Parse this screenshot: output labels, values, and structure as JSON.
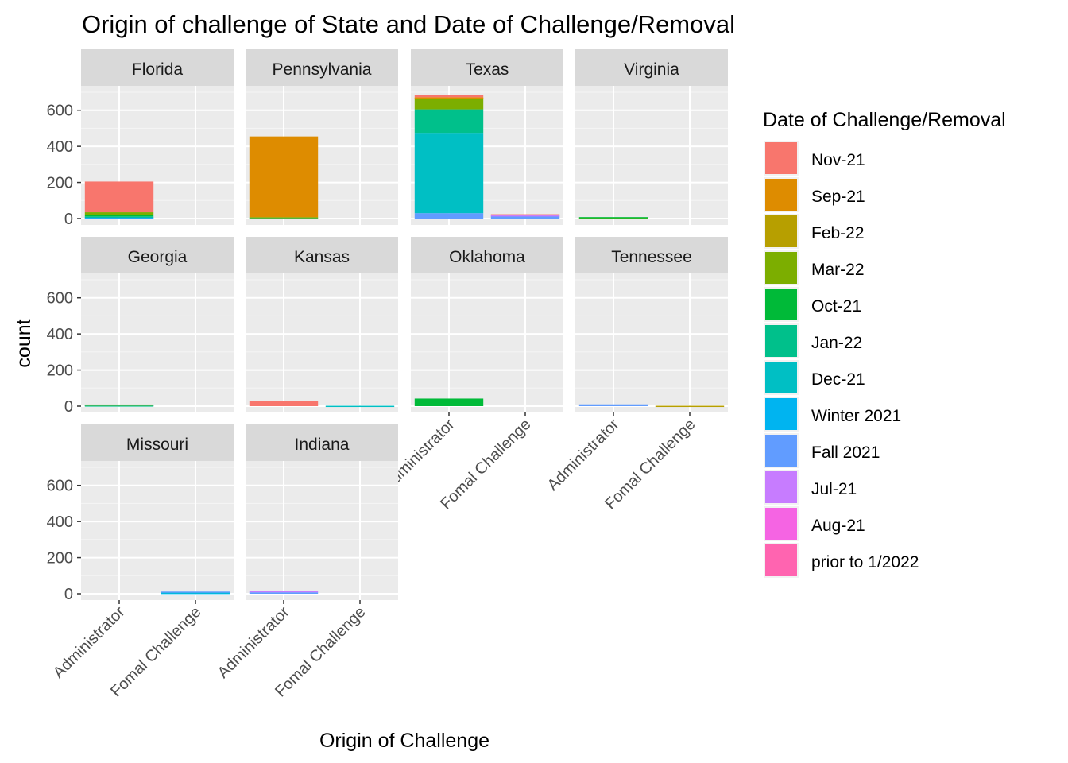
{
  "chart_data": {
    "type": "bar",
    "stacked": true,
    "faceted": true,
    "title": "Origin of challenge of State and Date of Challenge/Removal",
    "xlabel": "Origin of Challenge",
    "ylabel": "count",
    "ylim": [
      0,
      700
    ],
    "yticks": [
      0,
      200,
      400,
      600
    ],
    "categories": [
      "Administrator",
      "Fomal Challenge"
    ],
    "legend": {
      "title": "Date of Challenge/Removal",
      "position": "right",
      "entries": [
        {
          "label": "Nov-21",
          "color": "#F8766D"
        },
        {
          "label": "Sep-21",
          "color": "#DE8C00"
        },
        {
          "label": "Feb-22",
          "color": "#B79F00"
        },
        {
          "label": "Mar-22",
          "color": "#7CAE00"
        },
        {
          "label": "Oct-21",
          "color": "#00BA38"
        },
        {
          "label": "Jan-22",
          "color": "#00C08B"
        },
        {
          "label": "Dec-21",
          "color": "#00BFC4"
        },
        {
          "label": "Winter 2021",
          "color": "#00B4F0"
        },
        {
          "label": "Fall 2021",
          "color": "#619CFF"
        },
        {
          "label": "Jul-21",
          "color": "#C77CFF"
        },
        {
          "label": "Aug-21",
          "color": "#F564E3"
        },
        {
          "label": "prior to 1/2022",
          "color": "#FF64B0"
        }
      ]
    },
    "facets": [
      {
        "name": "Florida",
        "bars": [
          {
            "category": "Administrator",
            "segments": [
              {
                "series": "Fall 2021",
                "value": 5
              },
              {
                "series": "Winter 2021",
                "value": 3
              },
              {
                "series": "Jan-22",
                "value": 4
              },
              {
                "series": "Oct-21",
                "value": 8
              },
              {
                "series": "Mar-22",
                "value": 15
              },
              {
                "series": "Nov-21",
                "value": 170
              }
            ]
          },
          {
            "category": "Fomal Challenge",
            "segments": []
          }
        ]
      },
      {
        "name": "Pennsylvania",
        "bars": [
          {
            "category": "Administrator",
            "segments": [
              {
                "series": "Dec-21",
                "value": 5
              },
              {
                "series": "Mar-22",
                "value": 3
              },
              {
                "series": "Sep-21",
                "value": 447
              }
            ]
          },
          {
            "category": "Fomal Challenge",
            "segments": []
          }
        ]
      },
      {
        "name": "Texas",
        "bars": [
          {
            "category": "Administrator",
            "segments": [
              {
                "series": "Fall 2021",
                "value": 30
              },
              {
                "series": "Dec-21",
                "value": 445
              },
              {
                "series": "Jan-22",
                "value": 130
              },
              {
                "series": "Mar-22",
                "value": 60
              },
              {
                "series": "Feb-22",
                "value": 5
              },
              {
                "series": "Sep-21",
                "value": 2
              },
              {
                "series": "Nov-21",
                "value": 12
              }
            ]
          },
          {
            "category": "Fomal Challenge",
            "segments": [
              {
                "series": "Fall 2021",
                "value": 15
              },
              {
                "series": "Jul-21",
                "value": 3
              },
              {
                "series": "Nov-21",
                "value": 6
              }
            ]
          }
        ]
      },
      {
        "name": "Virginia",
        "bars": [
          {
            "category": "Administrator",
            "segments": [
              {
                "series": "Mar-22",
                "value": 5
              },
              {
                "series": "Oct-21",
                "value": 3
              }
            ]
          },
          {
            "category": "Fomal Challenge",
            "segments": []
          }
        ]
      },
      {
        "name": "Georgia",
        "bars": [
          {
            "category": "Administrator",
            "segments": [
              {
                "series": "Jan-22",
                "value": 4
              },
              {
                "series": "Dec-21",
                "value": 3
              },
              {
                "series": "Mar-22",
                "value": 2
              }
            ]
          },
          {
            "category": "Fomal Challenge",
            "segments": []
          }
        ]
      },
      {
        "name": "Kansas",
        "bars": [
          {
            "category": "Administrator",
            "segments": [
              {
                "series": "Nov-21",
                "value": 30
              }
            ]
          },
          {
            "category": "Fomal Challenge",
            "segments": [
              {
                "series": "Dec-21",
                "value": 2
              }
            ]
          }
        ]
      },
      {
        "name": "Oklahoma",
        "bars": [
          {
            "category": "Administrator",
            "segments": [
              {
                "series": "Oct-21",
                "value": 42
              }
            ]
          },
          {
            "category": "Fomal Challenge",
            "segments": []
          }
        ]
      },
      {
        "name": "Tennessee",
        "bars": [
          {
            "category": "Administrator",
            "segments": [
              {
                "series": "Fall 2021",
                "value": 10
              }
            ]
          },
          {
            "category": "Fomal Challenge",
            "segments": [
              {
                "series": "Feb-22",
                "value": 2
              }
            ]
          }
        ]
      },
      {
        "name": "Missouri",
        "bars": [
          {
            "category": "Administrator",
            "segments": []
          },
          {
            "category": "Fomal Challenge",
            "segments": [
              {
                "series": "Winter 2021",
                "value": 5
              },
              {
                "series": "Dec-21",
                "value": 4
              },
              {
                "series": "Fall 2021",
                "value": 3
              }
            ]
          }
        ]
      },
      {
        "name": "Indiana",
        "bars": [
          {
            "category": "Administrator",
            "segments": [
              {
                "series": "Fall 2021",
                "value": 8
              },
              {
                "series": "Jul-21",
                "value": 8
              }
            ]
          },
          {
            "category": "Fomal Challenge",
            "segments": []
          }
        ]
      }
    ]
  }
}
